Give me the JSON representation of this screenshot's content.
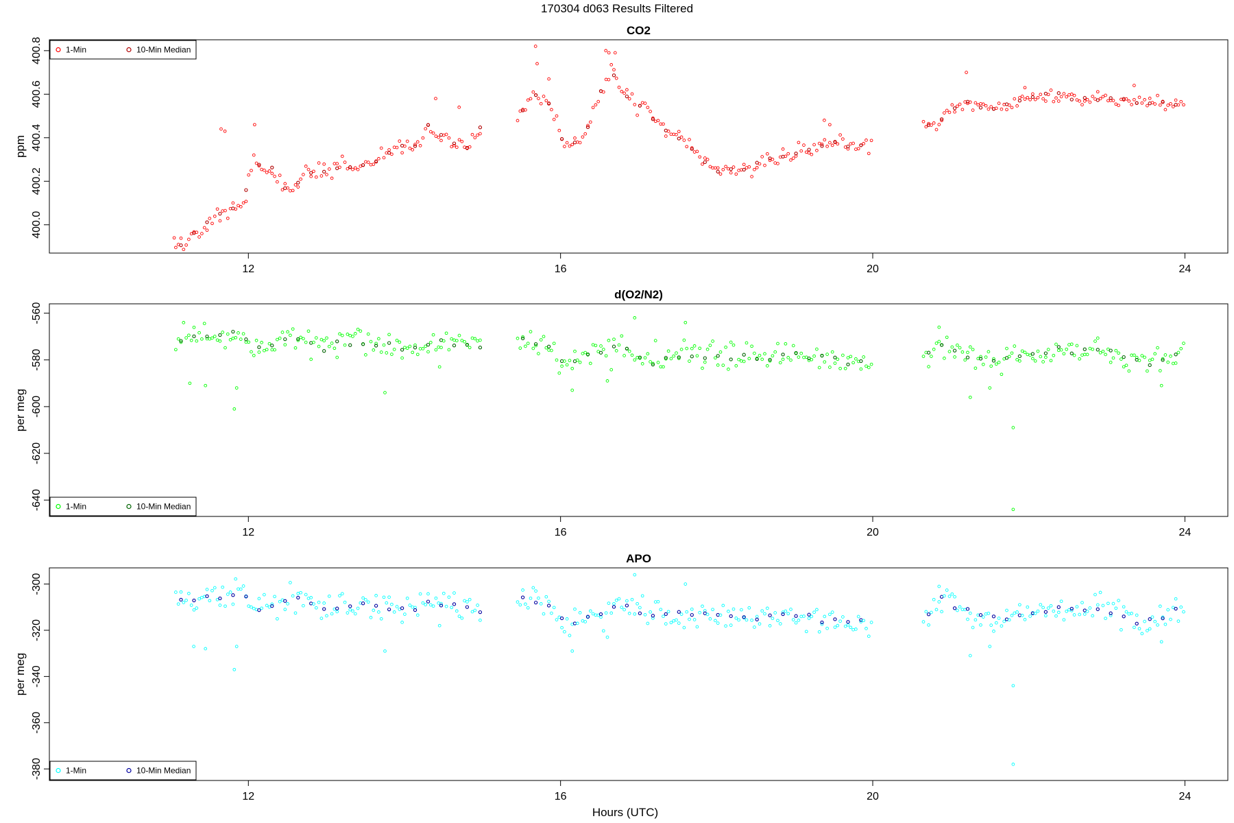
{
  "figure": {
    "title": "170304   d063   Results Filtered",
    "xlabel": "Hours (UTC)"
  },
  "chart_data": [
    {
      "type": "scatter",
      "title": "CO2",
      "ylabel": "ppm",
      "xlim": [
        9.45,
        24.55
      ],
      "ylim": [
        399.87,
        400.85
      ],
      "xticks": [
        12,
        16,
        20,
        24
      ],
      "yticks": [
        400.0,
        400.2,
        400.4,
        400.6,
        400.8
      ],
      "ytick_labels": [
        "400.0",
        "400.2",
        "400.4",
        "400.6",
        "400.8"
      ],
      "legend": {
        "position": "top-left",
        "entries": [
          "1-Min",
          "10-Min Median"
        ]
      },
      "series": [
        {
          "name": "1-Min",
          "color": "#ff0000",
          "anchors": [
            [
              11.07,
              399.9
            ],
            [
              11.2,
              399.92
            ],
            [
              11.5,
              400.02
            ],
            [
              11.8,
              400.08
            ],
            [
              11.95,
              400.12
            ],
            [
              12.05,
              400.3
            ],
            [
              12.3,
              400.25
            ],
            [
              12.5,
              400.15
            ],
            [
              12.8,
              400.25
            ],
            [
              13.2,
              400.25
            ],
            [
              13.6,
              400.28
            ],
            [
              13.9,
              400.36
            ],
            [
              14.1,
              400.35
            ],
            [
              14.3,
              400.45
            ],
            [
              14.5,
              400.4
            ],
            [
              14.8,
              400.35
            ],
            [
              15.0,
              400.45
            ]
          ],
          "noise": 0.035,
          "spikes": [
            [
              11.05,
              399.94
            ],
            [
              11.65,
              400.44
            ],
            [
              11.7,
              400.43
            ],
            [
              12.08,
              400.46
            ],
            [
              14.4,
              400.58
            ],
            [
              14.7,
              400.54
            ]
          ]
        },
        {
          "name": "1-Min",
          "color": "#ff0000",
          "anchors": [
            [
              15.45,
              400.5
            ],
            [
              15.65,
              400.6
            ],
            [
              15.85,
              400.55
            ],
            [
              16.05,
              400.35
            ],
            [
              16.3,
              400.4
            ],
            [
              16.5,
              400.6
            ],
            [
              16.65,
              400.72
            ],
            [
              16.8,
              400.6
            ],
            [
              17.0,
              400.55
            ],
            [
              17.3,
              400.45
            ],
            [
              17.55,
              400.4
            ],
            [
              17.8,
              400.3
            ],
            [
              18.0,
              400.25
            ],
            [
              18.4,
              400.26
            ],
            [
              18.8,
              400.32
            ],
            [
              19.2,
              400.34
            ],
            [
              19.5,
              400.38
            ],
            [
              19.8,
              400.36
            ],
            [
              20.0,
              400.38
            ]
          ],
          "noise": 0.03,
          "spikes": [
            [
              15.68,
              400.82
            ],
            [
              15.7,
              400.74
            ],
            [
              15.85,
              400.67
            ],
            [
              16.58,
              400.8
            ],
            [
              16.62,
              400.79
            ],
            [
              16.7,
              400.79
            ],
            [
              19.38,
              400.48
            ],
            [
              19.45,
              400.46
            ]
          ]
        },
        {
          "name": "1-Min",
          "color": "#ff0000",
          "anchors": [
            [
              20.65,
              400.45
            ],
            [
              20.85,
              400.47
            ],
            [
              21.15,
              400.56
            ],
            [
              21.5,
              400.53
            ],
            [
              21.7,
              400.55
            ],
            [
              22.0,
              400.58
            ],
            [
              22.3,
              400.6
            ],
            [
              22.7,
              400.57
            ],
            [
              23.0,
              400.58
            ],
            [
              23.4,
              400.56
            ],
            [
              23.7,
              400.56
            ],
            [
              24.0,
              400.55
            ]
          ],
          "noise": 0.025,
          "spikes": [
            [
              21.2,
              400.7
            ],
            [
              21.95,
              400.63
            ],
            [
              23.35,
              400.64
            ]
          ]
        }
      ]
    },
    {
      "type": "scatter",
      "title": "d(O2/N2)",
      "ylabel": "per meg",
      "xlim": [
        9.45,
        24.55
      ],
      "ylim": [
        -647,
        -556
      ],
      "xticks": [
        12,
        16,
        20,
        24
      ],
      "yticks": [
        -640,
        -620,
        -600,
        -580,
        -560
      ],
      "ytick_labels": [
        "-640",
        "-620",
        "-600",
        "-580",
        "-560"
      ],
      "legend": {
        "position": "bottom-left",
        "entries": [
          "1-Min",
          "10-Min Median"
        ]
      },
      "series": [
        {
          "name": "1-Min",
          "color": "#00ff00",
          "anchors": [
            [
              11.07,
              -572
            ],
            [
              11.5,
              -570
            ],
            [
              11.95,
              -568
            ],
            [
              12.1,
              -576
            ],
            [
              12.5,
              -570
            ],
            [
              13.0,
              -574
            ],
            [
              13.5,
              -573
            ],
            [
              14.0,
              -575
            ],
            [
              14.5,
              -572
            ],
            [
              15.0,
              -575
            ]
          ],
          "noise": 5,
          "spikes": [
            [
              11.25,
              -590
            ],
            [
              11.45,
              -591
            ],
            [
              11.82,
              -601
            ],
            [
              11.85,
              -592
            ],
            [
              13.75,
              -594
            ],
            [
              14.45,
              -583
            ]
          ]
        },
        {
          "name": "1-Min",
          "color": "#00ff00",
          "anchors": [
            [
              15.45,
              -572
            ],
            [
              15.8,
              -574
            ],
            [
              16.1,
              -582
            ],
            [
              16.5,
              -577
            ],
            [
              16.8,
              -574
            ],
            [
              17.2,
              -580
            ],
            [
              17.6,
              -578
            ],
            [
              18.0,
              -578
            ],
            [
              18.5,
              -579
            ],
            [
              19.0,
              -578
            ],
            [
              19.5,
              -580
            ],
            [
              20.0,
              -582
            ]
          ],
          "noise": 5,
          "spikes": [
            [
              16.15,
              -593
            ],
            [
              16.6,
              -589
            ],
            [
              16.95,
              -562
            ],
            [
              17.6,
              -564
            ]
          ]
        },
        {
          "name": "1-Min",
          "color": "#00ff00",
          "anchors": [
            [
              20.65,
              -580
            ],
            [
              20.85,
              -572
            ],
            [
              21.2,
              -578
            ],
            [
              21.6,
              -581
            ],
            [
              22.0,
              -578
            ],
            [
              22.5,
              -576
            ],
            [
              23.0,
              -576
            ],
            [
              23.5,
              -581
            ],
            [
              24.0,
              -575
            ]
          ],
          "noise": 5,
          "spikes": [
            [
              20.85,
              -566
            ],
            [
              21.25,
              -596
            ],
            [
              21.5,
              -592
            ],
            [
              21.8,
              -609
            ],
            [
              21.8,
              -644
            ],
            [
              23.7,
              -591
            ]
          ]
        }
      ]
    },
    {
      "type": "scatter",
      "title": "APO",
      "ylabel": "per meg",
      "xlim": [
        9.45,
        24.55
      ],
      "ylim": [
        -385,
        -293
      ],
      "xticks": [
        12,
        16,
        20,
        24
      ],
      "yticks": [
        -380,
        -360,
        -340,
        -320,
        -300
      ],
      "ytick_labels": [
        "-380",
        "-360",
        "-340",
        "-320",
        "-300"
      ],
      "legend": {
        "position": "bottom-left",
        "entries": [
          "1-Min",
          "10-Min Median"
        ]
      },
      "series": [
        {
          "name": "1-Min",
          "color": "#00ffff",
          "anchors": [
            [
              11.07,
              -307
            ],
            [
              11.5,
              -307
            ],
            [
              11.95,
              -304
            ],
            [
              12.1,
              -312
            ],
            [
              12.5,
              -306
            ],
            [
              13.0,
              -310
            ],
            [
              13.5,
              -309
            ],
            [
              14.0,
              -311
            ],
            [
              14.5,
              -308
            ],
            [
              15.0,
              -311
            ]
          ],
          "noise": 5,
          "spikes": [
            [
              11.3,
              -327
            ],
            [
              11.45,
              -328
            ],
            [
              11.82,
              -337
            ],
            [
              11.85,
              -327
            ],
            [
              13.75,
              -329
            ],
            [
              14.45,
              -318
            ]
          ]
        },
        {
          "name": "1-Min",
          "color": "#00ffff",
          "anchors": [
            [
              15.45,
              -306
            ],
            [
              15.8,
              -308
            ],
            [
              16.1,
              -318
            ],
            [
              16.5,
              -313
            ],
            [
              16.8,
              -308
            ],
            [
              17.2,
              -315
            ],
            [
              17.6,
              -313
            ],
            [
              18.0,
              -314
            ],
            [
              18.5,
              -315
            ],
            [
              19.0,
              -314
            ],
            [
              19.5,
              -316
            ],
            [
              20.0,
              -318
            ]
          ],
          "noise": 5,
          "spikes": [
            [
              16.15,
              -329
            ],
            [
              16.6,
              -323
            ],
            [
              16.95,
              -296
            ],
            [
              17.6,
              -300
            ]
          ]
        },
        {
          "name": "1-Min",
          "color": "#00ffff",
          "anchors": [
            [
              20.65,
              -315
            ],
            [
              20.85,
              -307
            ],
            [
              21.2,
              -313
            ],
            [
              21.6,
              -316
            ],
            [
              22.0,
              -313
            ],
            [
              22.5,
              -311
            ],
            [
              23.0,
              -311
            ],
            [
              23.5,
              -317
            ],
            [
              24.0,
              -310
            ]
          ],
          "noise": 5,
          "spikes": [
            [
              20.85,
              -301
            ],
            [
              21.25,
              -331
            ],
            [
              21.5,
              -327
            ],
            [
              21.8,
              -344
            ],
            [
              21.8,
              -378
            ],
            [
              23.7,
              -325
            ]
          ]
        }
      ]
    }
  ]
}
